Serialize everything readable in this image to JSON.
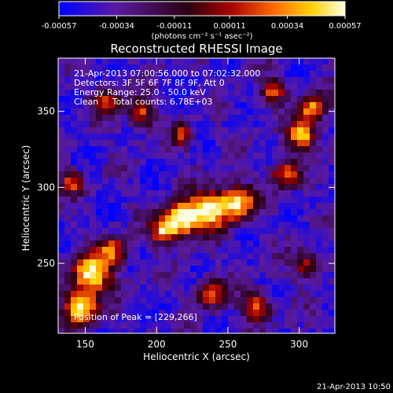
{
  "chart_data": {
    "type": "heatmap",
    "title": "Reconstructed RHESSI Image",
    "xlabel": "Heliocentric X (arcsec)",
    "ylabel": "Heliocentric Y (arcsec)",
    "xlim": [
      131,
      325
    ],
    "ylim": [
      204,
      385
    ],
    "x_ticks": [
      "150",
      "200",
      "250",
      "300"
    ],
    "y_ticks": [
      "250",
      "300",
      "350"
    ],
    "x_tick_values": [
      150,
      200,
      250,
      300
    ],
    "y_tick_values": [
      250,
      300,
      350
    ],
    "colorbar": {
      "min": -0.00057,
      "max": 0.00057,
      "tick_labels": [
        "-0.00057",
        "-0.00034",
        "-0.00011",
        "0.00011",
        "0.00034",
        "0.00057"
      ],
      "tick_values": [
        -0.00057,
        -0.00034,
        -0.00011,
        0.00011,
        0.00034,
        0.00057
      ],
      "unit_label": "(photons cm⁻² s⁻¹ asec⁻²)",
      "colors": [
        "#0000ff",
        "#5a1aa0",
        "#2a0010",
        "#a80000",
        "#ff6a00",
        "#ffd000",
        "#ffffe0"
      ]
    },
    "annotations": [
      "21-Apr-2013 07:00:56.000 to 07:02:32.000",
      "Detectors: 3F 5F 6F 7F 8F 9F, Att 0",
      "Energy Range: 25.0 - 50.0 keV",
      "Clean     Total counts: 6.78E+03"
    ],
    "peak_label": "Position of Peak = [229,266]",
    "peak_position": [
      229,
      266
    ],
    "grid": false
  },
  "footer": {
    "timestamp": "21-Apr-2013 10:50"
  }
}
